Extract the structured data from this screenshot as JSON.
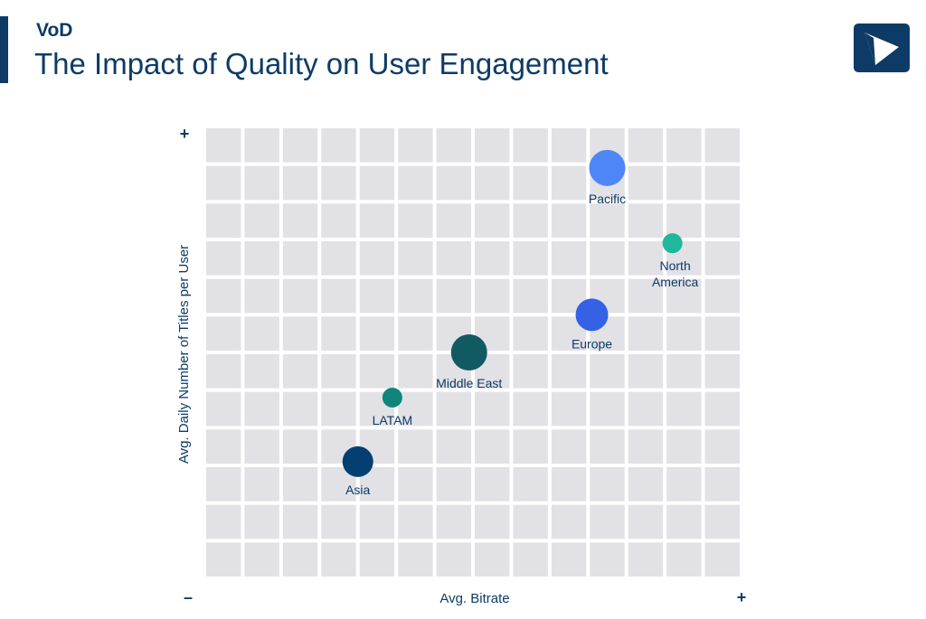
{
  "header": {
    "kicker": "VoD",
    "title": "The Impact of Quality on User Engagement"
  },
  "logo": {
    "icon": "play-logo-icon",
    "color": "#0d3b66"
  },
  "chart_data": {
    "type": "scatter",
    "title": "The Impact of Quality on User Engagement",
    "xlabel": "Avg. Bitrate",
    "ylabel": "Avg. Daily Number of Titles per User",
    "x_axis": {
      "min_label": "–",
      "max_label": "+"
    },
    "y_axis": {
      "max_label": "+"
    },
    "xlim": [
      0,
      14
    ],
    "ylim": [
      0,
      12
    ],
    "grid": true,
    "points": [
      {
        "label": "Pacific",
        "x": 10.5,
        "y": 10.9,
        "size": 20,
        "color": "#4f86f7"
      },
      {
        "label": "North America",
        "x": 12.2,
        "y": 8.9,
        "size": 11,
        "color": "#1fb89a"
      },
      {
        "label": "Europe",
        "x": 10.1,
        "y": 7.0,
        "size": 18,
        "color": "#3461e6"
      },
      {
        "label": "Middle East",
        "x": 6.9,
        "y": 6.0,
        "size": 20,
        "color": "#125a61"
      },
      {
        "label": "LATAM",
        "x": 4.9,
        "y": 4.8,
        "size": 11,
        "color": "#10857b"
      },
      {
        "label": "Asia",
        "x": 4.0,
        "y": 3.1,
        "size": 17,
        "color": "#053f72"
      }
    ]
  }
}
